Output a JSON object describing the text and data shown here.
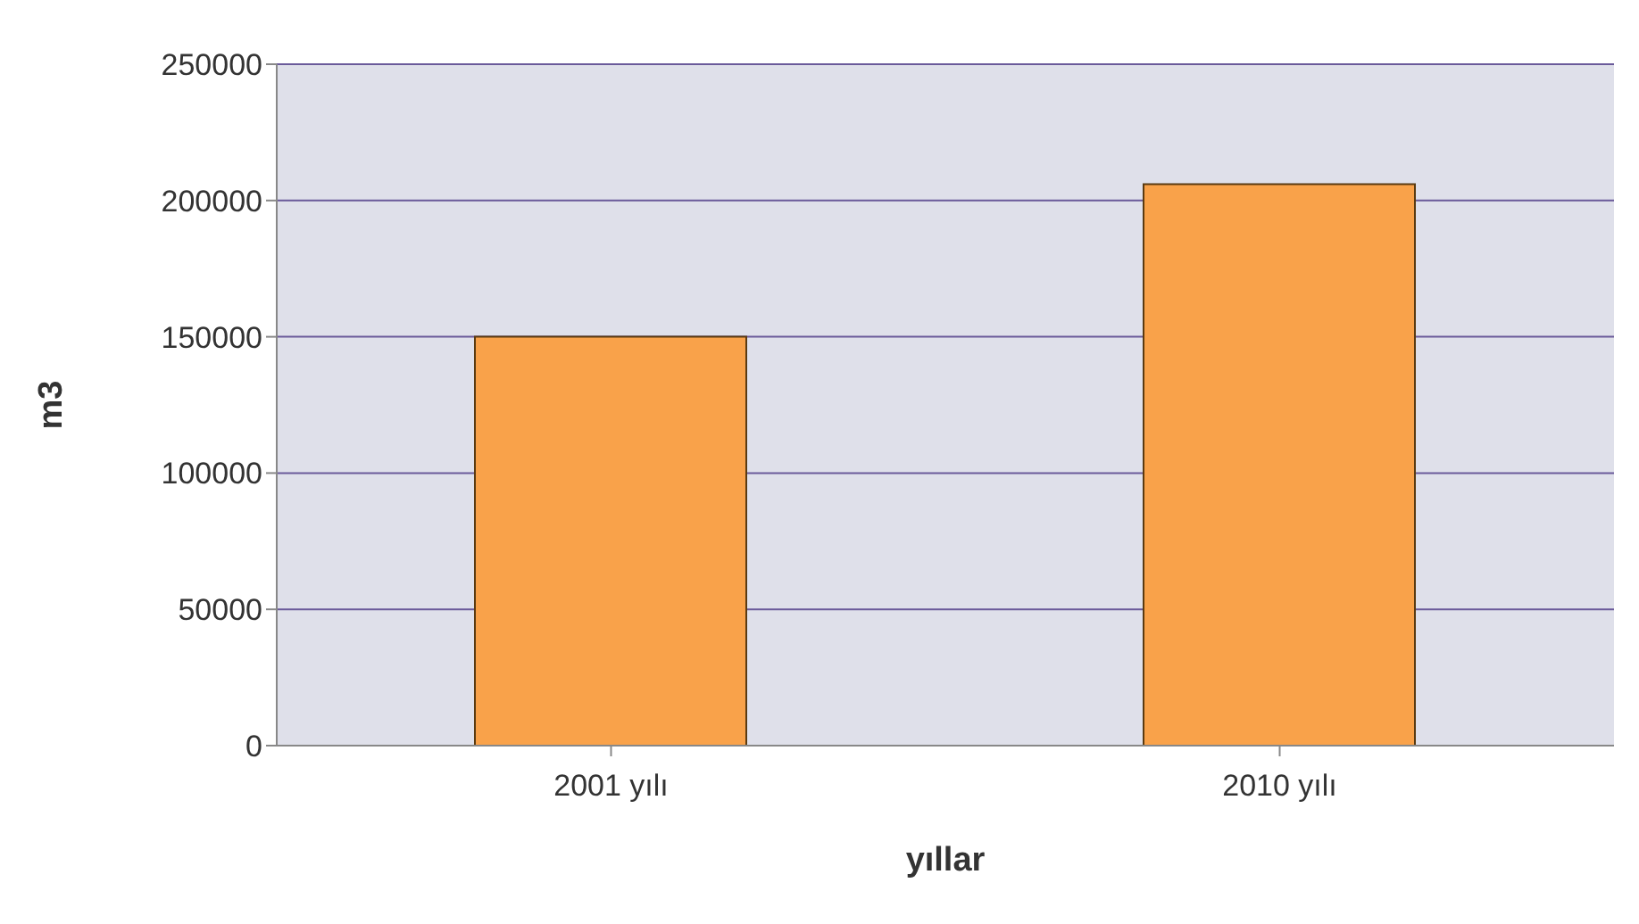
{
  "chart_data": {
    "type": "bar",
    "xlabel": "yıllar",
    "ylabel": "m3",
    "categories": [
      "2001 yılı",
      "2010 yılı"
    ],
    "values": [
      150000,
      206000
    ],
    "color": "#f9a24a",
    "ylim": [
      0,
      250000
    ],
    "yticks": [
      0,
      50000,
      100000,
      150000,
      200000,
      250000
    ],
    "grid": "y"
  }
}
